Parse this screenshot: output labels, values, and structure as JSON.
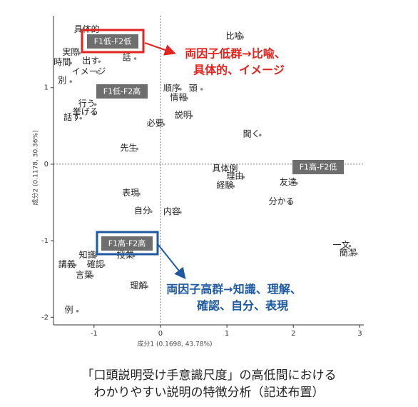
{
  "chart_data": {
    "type": "scatter",
    "xlabel": "成分1 (0.1698, 43.78%)",
    "ylabel": "成分2 (0.1178, 30.36%)",
    "labels": [
      "具体的",
      "比喩",
      "実際",
      "時間",
      "出す",
      "話",
      "イメージ",
      "別",
      "順序",
      "頭",
      "情報",
      "説明",
      "行う",
      "挙げる",
      "話す",
      "必要",
      "聞く",
      "先生",
      "具体例",
      "理由",
      "経験",
      "友達",
      "分かる",
      "表現",
      "自分",
      "内容",
      "一文",
      "簡潔",
      "授業",
      "知識",
      "講義",
      "確認",
      "言葉",
      "理解",
      "例"
    ],
    "x": [
      -0.98,
      1.24,
      -1.22,
      -1.35,
      -0.92,
      -0.38,
      -0.95,
      -1.35,
      0.3,
      0.62,
      0.4,
      0.47,
      -0.98,
      -1.0,
      -1.2,
      0.05,
      1.5,
      -0.35,
      1.1,
      1.25,
      1.1,
      2.05,
      1.95,
      -0.32,
      -0.14,
      0.3,
      2.85,
      2.95,
      -0.4,
      -0.97,
      -1.28,
      -0.85,
      -1.02,
      -0.2,
      -1.25
    ],
    "values": [
      1.75,
      1.66,
      1.45,
      1.32,
      1.34,
      1.38,
      1.2,
      1.08,
      0.98,
      0.98,
      0.86,
      0.63,
      0.78,
      0.67,
      0.6,
      0.52,
      0.38,
      0.2,
      -0.07,
      -0.17,
      -0.29,
      -0.25,
      -0.5,
      -0.39,
      -0.62,
      -0.63,
      -1.07,
      -1.17,
      -1.2,
      -1.2,
      -1.32,
      -1.32,
      -1.46,
      -1.6,
      -1.92
    ],
    "color": "#8a8a8a",
    "xlim": [
      -1.61,
      3.06
    ],
    "ylim": [
      -2.1,
      1.94
    ],
    "xticks": [
      -1,
      0,
      1,
      2,
      3
    ],
    "yticks": [
      -2,
      -1,
      0,
      1
    ],
    "reference_lines": {
      "x": 0,
      "y": 0
    },
    "groups": [
      "F1低-F2低",
      "F1低-F2高",
      "F1高-F2低",
      "F1高-F2高"
    ],
    "annotations": [
      {
        "lines": [
          "両因子低群→比喩、",
          "具体的、イメージ"
        ],
        "color": "#e3231d"
      },
      {
        "lines": [
          "両因子高群→知識、理解、",
          "確認、自分、表現"
        ],
        "color": "#1f5aa0"
      }
    ],
    "caption": [
      "「口頭説明受け手意識尺度」の高低間における",
      "わかりやすい説明の特徴分析（記述布置）"
    ]
  }
}
